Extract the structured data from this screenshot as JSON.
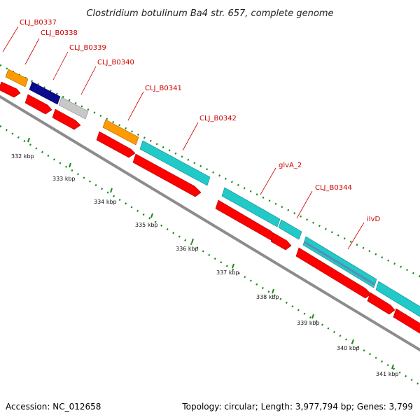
{
  "title": "Clostridium botulinum Ba4 str. 657, complete genome",
  "footer": {
    "accession": "Accession: NC_012658",
    "stats": "Topology: circular; Length: 3,977,794 bp; Genes: 3,799"
  },
  "colors": {
    "backbone": "#8c8c8c",
    "cds_forward": "#ff0000",
    "cds_reverse": "#ff0000",
    "label_text": "#cc0000",
    "gc_dots": "#1a8a1a",
    "tick_mark": "#1a8a1a"
  },
  "scale_kbp": [
    "332 kbp",
    "333 kbp",
    "334 kbp",
    "335 kbp",
    "336 kbp",
    "337 kbp",
    "338 kbp",
    "339 kbp",
    "340 kbp",
    "341 kbp"
  ],
  "genes": [
    {
      "label": "CLJ_B0337",
      "color": "#ff9a00"
    },
    {
      "label": "CLJ_B0338",
      "color": "#0b0b8f"
    },
    {
      "label": "CLJ_B0339",
      "color": "#c8c8c8"
    },
    {
      "label": "CLJ_B0340",
      "color": "#c8c8c8"
    },
    {
      "label": "CLJ_B0341",
      "color": "#ff9a00"
    },
    {
      "label": "CLJ_B0342",
      "color": "#21c9c9"
    },
    {
      "label": "glvA_2",
      "color": "#21c9c9"
    },
    {
      "label": "CLJ_B0344",
      "color": "#21c9c9"
    },
    {
      "label": "ilvD",
      "color": "#5a8fb5"
    }
  ]
}
